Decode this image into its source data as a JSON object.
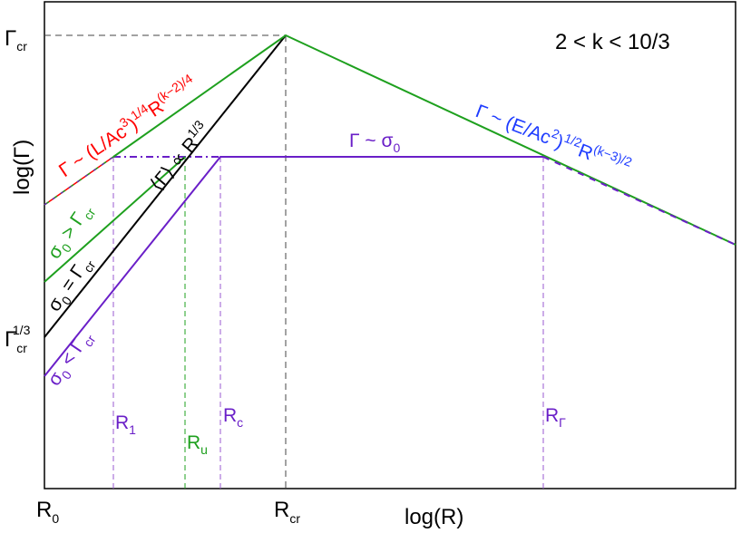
{
  "regime": "2 < k < 10/3",
  "axes": {
    "xlabel": "log(R)",
    "ylabel": "log(Γ)",
    "x_ticks": {
      "r0": "R",
      "r0_sub": "0",
      "rcr": "R",
      "rcr_sub": "cr"
    },
    "y_ticks": {
      "gcr": "Γ",
      "gcr_sub": "cr",
      "gcr13": "Γ",
      "gcr13_sub": "cr",
      "gcr13_sup": "1/3"
    }
  },
  "radii": {
    "r1": {
      "main": "R",
      "sub": "1"
    },
    "ru": {
      "main": "R",
      "sub": "u"
    },
    "rc": {
      "main": "R",
      "sub": "c"
    },
    "rgamma": {
      "main": "R",
      "sub": "Γ"
    }
  },
  "annotations": {
    "luminosity": {
      "a": "Γ ~ (L/Ac",
      "sup1": "3",
      "b": ")",
      "sup2": "1/4",
      "c": "R",
      "sup3": "(k−2)/4"
    },
    "energy": {
      "a": "Γ ~ (E/Ac",
      "sup1": "2",
      "b": ")",
      "sup2": "1/2",
      "c": "R",
      "sup3": "(k−3)/2"
    },
    "sigma_plateau": {
      "a": "Γ ~ σ",
      "sub": "0"
    },
    "mean_gamma": {
      "a": "⟨Γ⟩ ∝ R",
      "sup": "1/3"
    },
    "sigma_gt": {
      "a": "σ",
      "sub": "0",
      "b": " > Γ",
      "sub2": "cr"
    },
    "sigma_eq": {
      "a": "σ",
      "sub": "0",
      "b": " = Γ",
      "sub2": "cr"
    },
    "sigma_lt": {
      "a": "σ",
      "sub": "0",
      "b": " < Γ",
      "sub2": "cr"
    }
  },
  "colors": {
    "luminosity": "#ff0000",
    "energy": "#1e3cff",
    "sigma_gt": "#1ea01e",
    "sigma_eq": "#000000",
    "sigma_lt": "#6a1fc8",
    "frame": "#000000",
    "guide": "#555555"
  }
}
